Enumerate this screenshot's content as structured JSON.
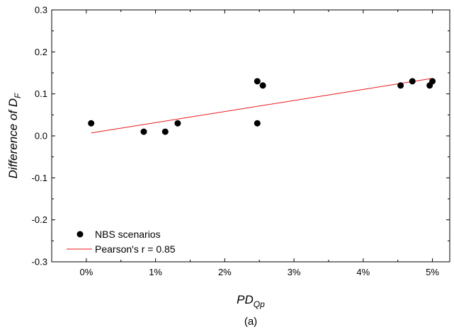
{
  "chart_data": {
    "type": "scatter",
    "xlabel": {
      "main": "PD",
      "sub": "Qp"
    },
    "ylabel": {
      "main": "Difference of D",
      "sub": "F"
    },
    "caption": "(a)",
    "xlim": [
      -0.005,
      0.0525
    ],
    "ylim": [
      -0.3,
      0.3
    ],
    "x_ticks": [
      0,
      0.01,
      0.02,
      0.03,
      0.04,
      0.05
    ],
    "x_tick_labels": [
      "0%",
      "1%",
      "2%",
      "3%",
      "4%",
      "5%"
    ],
    "y_ticks": [
      -0.3,
      -0.2,
      -0.1,
      0.0,
      0.1,
      0.2,
      0.3
    ],
    "y_tick_labels": [
      "-0.3",
      "-0.2",
      "-0.1",
      "0.0",
      "0.1",
      "0.2",
      "0.3"
    ],
    "grid": false,
    "legend_position": "bottom-left",
    "series": [
      {
        "name": "NBS scenarios",
        "kind": "points",
        "color": "#000000",
        "points": [
          {
            "x": 0.0007,
            "y": 0.03
          },
          {
            "x": 0.0083,
            "y": 0.01
          },
          {
            "x": 0.0114,
            "y": 0.01
          },
          {
            "x": 0.0132,
            "y": 0.03
          },
          {
            "x": 0.0247,
            "y": 0.03
          },
          {
            "x": 0.0247,
            "y": 0.13
          },
          {
            "x": 0.0255,
            "y": 0.12
          },
          {
            "x": 0.0454,
            "y": 0.12
          },
          {
            "x": 0.0471,
            "y": 0.13
          },
          {
            "x": 0.0496,
            "y": 0.12
          },
          {
            "x": 0.05,
            "y": 0.13
          }
        ]
      },
      {
        "name": "Pearson's r = 0.85",
        "kind": "line",
        "color": "#e8191b",
        "points": [
          {
            "x": 0.0007,
            "y": 0.007
          },
          {
            "x": 0.05,
            "y": 0.137
          }
        ]
      }
    ]
  }
}
